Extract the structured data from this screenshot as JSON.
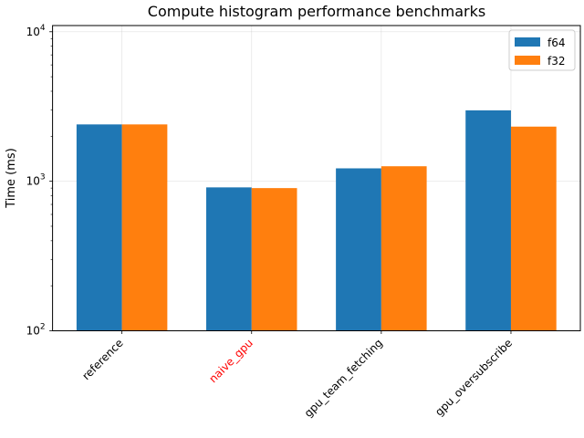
{
  "chart_data": {
    "type": "bar",
    "title": "Compute histogram performance benchmarks",
    "xlabel": "",
    "ylabel": "Time (ms)",
    "yscale": "log",
    "ylim": [
      100,
      11000
    ],
    "yticks": [
      {
        "base": "10",
        "exp": "2",
        "value": 100
      },
      {
        "base": "10",
        "exp": "3",
        "value": 1000
      },
      {
        "base": "10",
        "exp": "4",
        "value": 10000
      }
    ],
    "grid": true,
    "legend_position": "top-right",
    "categories": [
      {
        "label": "reference",
        "color": "#000000"
      },
      {
        "label": "naive_gpu",
        "color": "#ff0000"
      },
      {
        "label": "gpu_team_fetching",
        "color": "#000000"
      },
      {
        "label": "gpu_oversubscribe",
        "color": "#000000"
      }
    ],
    "series": [
      {
        "name": "f64",
        "color": "#1f77b4",
        "values": [
          2400,
          910,
          1220,
          2980
        ]
      },
      {
        "name": "f32",
        "color": "#ff7f0e",
        "values": [
          2400,
          900,
          1260,
          2320
        ]
      }
    ]
  }
}
